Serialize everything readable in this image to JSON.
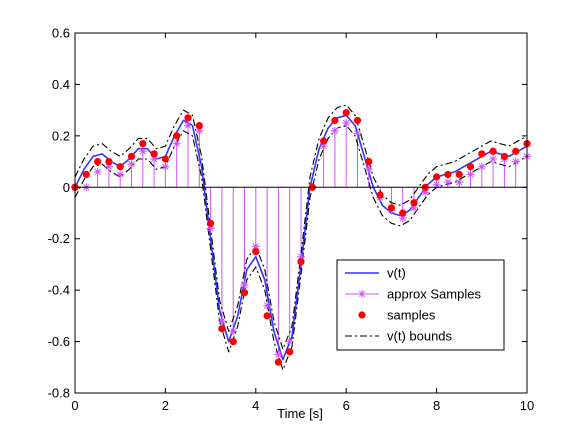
{
  "chart_data": {
    "type": "line",
    "title": "",
    "xlabel": "Time [s]",
    "ylabel": "",
    "xlim": [
      0,
      10
    ],
    "ylim": [
      -0.8,
      0.6
    ],
    "xticks": [
      0,
      2,
      4,
      6,
      8,
      10
    ],
    "yticks": [
      -0.8,
      -0.6,
      -0.4,
      -0.2,
      0,
      0.2,
      0.4,
      0.6
    ],
    "grid": false,
    "legend_position": "bottom-right",
    "colors": {
      "vt": "#3333ff",
      "approx": "#cc55ff",
      "samples": "#ff0000",
      "bounds": "#000000"
    },
    "series": [
      {
        "name": "v(t)",
        "style": "solid-line",
        "x": [
          0,
          0.2,
          0.4,
          0.6,
          0.8,
          1.0,
          1.2,
          1.4,
          1.6,
          1.8,
          2.0,
          2.2,
          2.4,
          2.6,
          2.8,
          3.0,
          3.2,
          3.4,
          3.6,
          3.8,
          4.0,
          4.2,
          4.4,
          4.6,
          4.8,
          5.0,
          5.2,
          5.4,
          5.6,
          5.8,
          6.0,
          6.2,
          6.4,
          6.6,
          6.8,
          7.0,
          7.2,
          7.4,
          7.6,
          7.8,
          8.0,
          8.2,
          8.4,
          8.6,
          8.8,
          9.0,
          9.2,
          9.4,
          9.6,
          9.8,
          10.0
        ],
        "y": [
          0.0,
          0.07,
          0.12,
          0.13,
          0.1,
          0.08,
          0.11,
          0.15,
          0.15,
          0.11,
          0.12,
          0.2,
          0.26,
          0.24,
          0.08,
          -0.2,
          -0.48,
          -0.6,
          -0.5,
          -0.32,
          -0.27,
          -0.36,
          -0.56,
          -0.67,
          -0.58,
          -0.3,
          0.0,
          0.15,
          0.23,
          0.27,
          0.28,
          0.24,
          0.12,
          0.0,
          -0.07,
          -0.1,
          -0.11,
          -0.09,
          -0.04,
          0.01,
          0.04,
          0.05,
          0.06,
          0.08,
          0.1,
          0.12,
          0.14,
          0.13,
          0.12,
          0.14,
          0.16
        ]
      },
      {
        "name": "approx Samples",
        "style": "stem-star",
        "x": [
          0,
          0.25,
          0.5,
          0.75,
          1.0,
          1.25,
          1.5,
          1.75,
          2.0,
          2.25,
          2.5,
          2.75,
          3.0,
          3.25,
          3.5,
          3.75,
          4.0,
          4.25,
          4.5,
          4.75,
          5.0,
          5.25,
          5.5,
          5.75,
          6.0,
          6.25,
          6.5,
          6.75,
          7.0,
          7.25,
          7.5,
          7.75,
          8.0,
          8.25,
          8.5,
          8.75,
          9.0,
          9.25,
          9.5,
          9.75,
          10.0
        ],
        "y": [
          0.0,
          0.0,
          0.06,
          0.08,
          0.05,
          0.09,
          0.14,
          0.11,
          0.08,
          0.17,
          0.24,
          0.22,
          -0.16,
          -0.52,
          -0.56,
          -0.38,
          -0.23,
          -0.46,
          -0.65,
          -0.6,
          -0.27,
          0.0,
          0.16,
          0.22,
          0.25,
          0.21,
          0.07,
          -0.04,
          -0.09,
          -0.12,
          -0.08,
          -0.02,
          0.01,
          0.02,
          0.02,
          0.05,
          0.08,
          0.11,
          0.11,
          0.1,
          0.12
        ]
      },
      {
        "name": "samples",
        "style": "dot",
        "x": [
          0,
          0.25,
          0.5,
          0.75,
          1.0,
          1.25,
          1.5,
          1.75,
          2.0,
          2.25,
          2.5,
          2.75,
          3.0,
          3.25,
          3.5,
          3.75,
          4.0,
          4.25,
          4.5,
          4.75,
          5.0,
          5.25,
          5.5,
          5.75,
          6.0,
          6.25,
          6.5,
          6.75,
          7.0,
          7.25,
          7.5,
          7.75,
          8.0,
          8.25,
          8.5,
          8.75,
          9.0,
          9.25,
          9.5,
          9.75,
          10.0
        ],
        "y": [
          0.0,
          0.05,
          0.1,
          0.1,
          0.08,
          0.12,
          0.17,
          0.13,
          0.11,
          0.2,
          0.27,
          0.24,
          -0.14,
          -0.55,
          -0.6,
          -0.41,
          -0.25,
          -0.5,
          -0.68,
          -0.64,
          -0.29,
          0.0,
          0.18,
          0.26,
          0.29,
          0.26,
          0.1,
          -0.03,
          -0.08,
          -0.1,
          -0.06,
          0.0,
          0.04,
          0.05,
          0.05,
          0.08,
          0.13,
          0.14,
          0.12,
          0.14,
          0.17
        ]
      },
      {
        "name": "v(t) bounds",
        "style": "dashdot-line",
        "x": [
          0,
          0.2,
          0.4,
          0.6,
          0.8,
          1.0,
          1.2,
          1.4,
          1.6,
          1.8,
          2.0,
          2.2,
          2.4,
          2.6,
          2.8,
          3.0,
          3.2,
          3.4,
          3.6,
          3.8,
          4.0,
          4.2,
          4.4,
          4.6,
          4.8,
          5.0,
          5.2,
          5.4,
          5.6,
          5.8,
          6.0,
          6.2,
          6.4,
          6.6,
          6.8,
          7.0,
          7.2,
          7.4,
          7.6,
          7.8,
          8.0,
          8.2,
          8.4,
          8.6,
          8.8,
          9.0,
          9.2,
          9.4,
          9.6,
          9.8,
          10.0
        ],
        "y": [
          0.04,
          0.11,
          0.16,
          0.17,
          0.14,
          0.12,
          0.15,
          0.19,
          0.19,
          0.15,
          0.16,
          0.24,
          0.3,
          0.28,
          0.12,
          -0.16,
          -0.44,
          -0.56,
          -0.46,
          -0.28,
          -0.23,
          -0.32,
          -0.52,
          -0.63,
          -0.54,
          -0.26,
          0.04,
          0.19,
          0.27,
          0.31,
          0.32,
          0.28,
          0.16,
          0.04,
          -0.03,
          -0.06,
          -0.07,
          -0.05,
          0.0,
          0.05,
          0.08,
          0.09,
          0.1,
          0.12,
          0.14,
          0.16,
          0.18,
          0.17,
          0.16,
          0.18,
          0.2
        ]
      },
      {
        "name": "",
        "style": "dashdot-line",
        "x": [
          0,
          0.2,
          0.4,
          0.6,
          0.8,
          1.0,
          1.2,
          1.4,
          1.6,
          1.8,
          2.0,
          2.2,
          2.4,
          2.6,
          2.8,
          3.0,
          3.2,
          3.4,
          3.6,
          3.8,
          4.0,
          4.2,
          4.4,
          4.6,
          4.8,
          5.0,
          5.2,
          5.4,
          5.6,
          5.8,
          6.0,
          6.2,
          6.4,
          6.6,
          6.8,
          7.0,
          7.2,
          7.4,
          7.6,
          7.8,
          8.0,
          8.2,
          8.4,
          8.6,
          8.8,
          9.0,
          9.2,
          9.4,
          9.6,
          9.8,
          10.0
        ],
        "y": [
          -0.04,
          0.03,
          0.08,
          0.09,
          0.06,
          0.04,
          0.07,
          0.11,
          0.11,
          0.07,
          0.08,
          0.16,
          0.22,
          0.2,
          0.04,
          -0.24,
          -0.52,
          -0.64,
          -0.54,
          -0.36,
          -0.31,
          -0.4,
          -0.6,
          -0.71,
          -0.62,
          -0.34,
          -0.04,
          0.11,
          0.19,
          0.23,
          0.24,
          0.2,
          0.08,
          -0.04,
          -0.11,
          -0.14,
          -0.15,
          -0.13,
          -0.08,
          -0.03,
          0.0,
          0.01,
          0.02,
          0.04,
          0.06,
          0.08,
          0.1,
          0.09,
          0.08,
          0.1,
          0.12
        ]
      }
    ],
    "legend": [
      {
        "label": "v(t)",
        "style": "solid-line"
      },
      {
        "label": "approx Samples",
        "style": "stem-star"
      },
      {
        "label": "samples",
        "style": "dot"
      },
      {
        "label": "v(t) bounds",
        "style": "dashdot-line"
      }
    ]
  }
}
